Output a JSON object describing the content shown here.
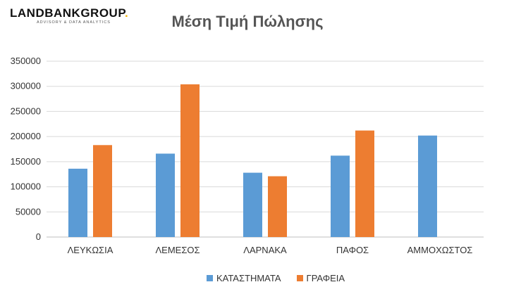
{
  "logo": {
    "main": "LANDBANKGROUP",
    "dot": ".",
    "sub": "ADVISORY & DATA ANALYTICS"
  },
  "chart_data": {
    "type": "bar",
    "title": "Μέση Τιμή Πώλησης",
    "xlabel": "",
    "ylabel": "",
    "categories": [
      "ΛΕΥΚΩΣΙΑ",
      "ΛΕΜΕΣΟΣ",
      "ΛΑΡΝΑΚΑ",
      "ΠΑΦΟΣ",
      "ΑΜΜΟΧΩΣΤΟΣ"
    ],
    "series": [
      {
        "name": "ΚΑΤΑΣΤΗΜΑΤΑ",
        "color": "#5b9bd5",
        "values": [
          136000,
          166000,
          128000,
          162000,
          202000
        ]
      },
      {
        "name": "ΓΡΑΦΕΙΑ",
        "color": "#ed7d31",
        "values": [
          183000,
          304000,
          121000,
          212000,
          null
        ]
      }
    ],
    "ylim": [
      0,
      350000
    ],
    "yticks": [
      "0",
      "50000",
      "100000",
      "150000",
      "200000",
      "250000",
      "300000",
      "350000"
    ],
    "grid": true,
    "legend_position": "bottom"
  }
}
